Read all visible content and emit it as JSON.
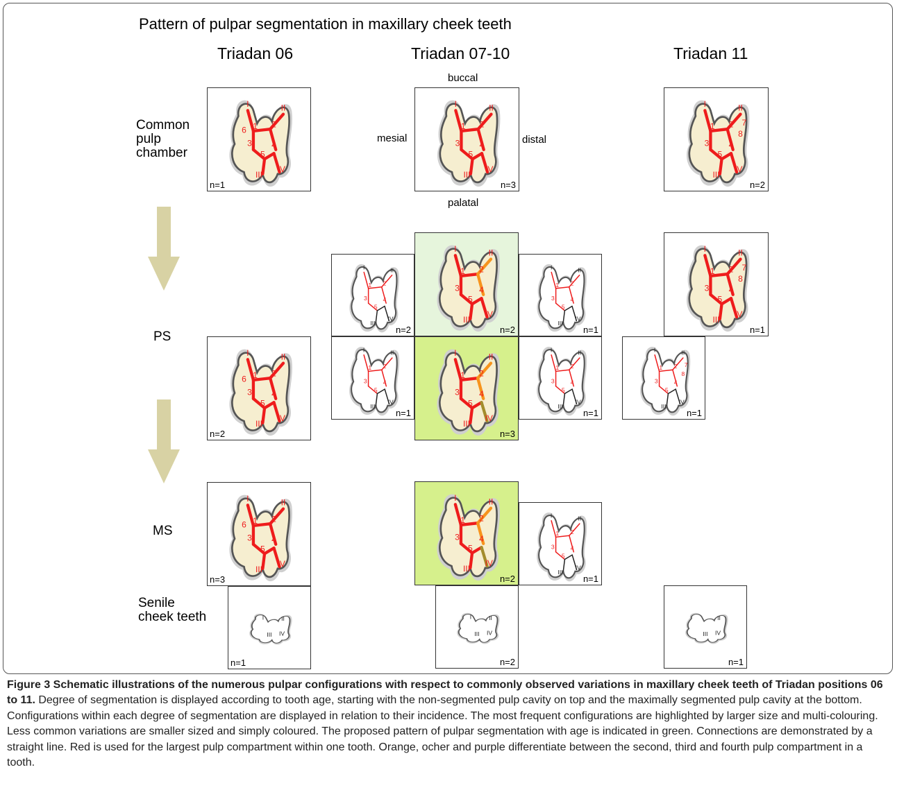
{
  "figure": {
    "title": "Pattern of pulpar segmentation in maxillary cheek teeth",
    "columns": [
      "Triadan 06",
      "Triadan 07-10",
      "Triadan 11"
    ],
    "rows": {
      "common": [
        "Common",
        "pulp",
        "chamber"
      ],
      "ps": "PS",
      "ms": "MS",
      "senile": [
        "Senile",
        "cheek teeth"
      ]
    },
    "directions": {
      "buccal": "buccal",
      "palatal": "palatal",
      "mesial": "mesial",
      "distal": "distal"
    },
    "panels": [
      {
        "id": "p06-common",
        "count": "n=1",
        "corner": "left",
        "bg": "white",
        "style": "full",
        "labels": "1 2 3 4 5 6 I II III IV"
      },
      {
        "id": "p0710-common",
        "count": "n=3",
        "corner": "right",
        "bg": "white",
        "style": "full",
        "labels": "1 2 3 4 5 I II III IV"
      },
      {
        "id": "p11-common",
        "count": "n=2",
        "corner": "right",
        "bg": "white",
        "style": "full",
        "labels": "1 2 3 4 5 7 8 I II III IV"
      },
      {
        "id": "p0710-ps-a",
        "count": "n=2",
        "corner": "right",
        "bg": "white",
        "style": "small",
        "labels": "1 2 3 4 5 I II III IV"
      },
      {
        "id": "p0710-ps-b",
        "count": "n=2",
        "corner": "right",
        "bg": "lightgreen",
        "style": "full",
        "labels": "1 2 3 4 5 I II III IV"
      },
      {
        "id": "p0710-ps-c",
        "count": "n=1",
        "corner": "right",
        "bg": "white",
        "style": "small",
        "labels": "1 2 3 4 5 I II III IV"
      },
      {
        "id": "p11-ps-a",
        "count": "n=1",
        "corner": "right",
        "bg": "white",
        "style": "full",
        "labels": "1 2 3 4 5 7 8 I II III IV"
      },
      {
        "id": "p06-ps",
        "count": "n=2",
        "corner": "left",
        "bg": "white",
        "style": "full",
        "labels": "1 2 3 4 5 6 I II III IV"
      },
      {
        "id": "p0710-ps-d",
        "count": "n=1",
        "corner": "right",
        "bg": "white",
        "style": "small",
        "labels": "1 2 3 4 5 I II III IV"
      },
      {
        "id": "p0710-ps-e",
        "count": "n=3",
        "corner": "right",
        "bg": "green",
        "style": "full",
        "labels": "1 2 3 4 5 I II III IV"
      },
      {
        "id": "p0710-ps-f",
        "count": "n=1",
        "corner": "right",
        "bg": "white",
        "style": "small",
        "labels": "1 2 3 4 5 I II III IV"
      },
      {
        "id": "p11-ps-b",
        "count": "n=1",
        "corner": "right",
        "bg": "white",
        "style": "small",
        "labels": "1 2 3 4 5 7 8 I II III IV"
      },
      {
        "id": "p06-ms",
        "count": "n=3",
        "corner": "left",
        "bg": "white",
        "style": "full",
        "labels": "1 2 3 4 5 6 I II III IV"
      },
      {
        "id": "p0710-ms-a",
        "count": "n=2",
        "corner": "right",
        "bg": "green",
        "style": "full",
        "labels": "1 2 3 4 5 I II III IV"
      },
      {
        "id": "p0710-ms-b",
        "count": "n=1",
        "corner": "right",
        "bg": "white",
        "style": "small",
        "labels": "1 2 3 4 5 I II III IV"
      },
      {
        "id": "p06-senile",
        "count": "n=1",
        "corner": "left",
        "bg": "white",
        "style": "senile",
        "labels": "I II III IV"
      },
      {
        "id": "p0710-senile",
        "count": "n=2",
        "corner": "right",
        "bg": "white",
        "style": "senile",
        "labels": "I II III IV"
      },
      {
        "id": "p11-senile",
        "count": "n=1",
        "corner": "right",
        "bg": "white",
        "style": "senile",
        "labels": "II III IV"
      }
    ],
    "colors": {
      "largest": "#ee1c1c",
      "second": "#f7941d",
      "third": "#a38d2c",
      "fourth": "#e619e6",
      "green_light": "#e6f5dc",
      "green": "#d6f08c",
      "arrow": "#d8d2a4"
    }
  },
  "caption": {
    "label": "Figure 3 Schematic illustrations of the numerous pulpar configurations with respect to commonly observed variations in maxillary cheek teeth of Triadan positions 06 to 11.",
    "body": " Degree of segmentation is displayed according to tooth age, starting with the non-segmented pulp cavity on top and the maximally segmented pulp cavity at the bottom. Configurations within each degree of segmentation are displayed in relation to their incidence. The most frequent configurations are highlighted by larger size and multi-colouring. Less common variations are smaller sized and simply coloured. The proposed pattern of pulpar segmentation with age is indicated in green. Connections are demonstrated by a straight line. Red is used for the largest pulp compartment within one tooth. Orange, ocher and purple differentiate between the second, third and fourth pulp compartment in a tooth."
  }
}
